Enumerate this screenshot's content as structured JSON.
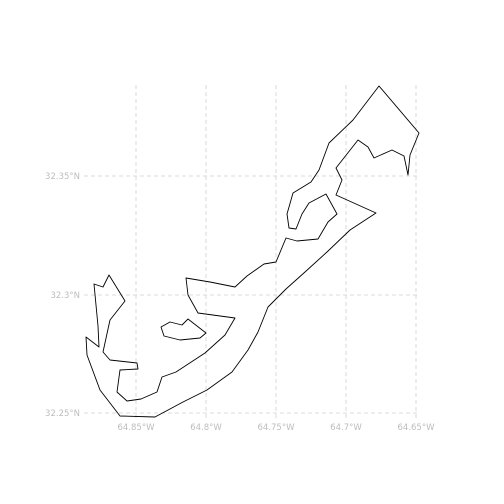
{
  "map": {
    "lat_ticks": [
      {
        "value": 32.35,
        "label": "32.35°N"
      },
      {
        "value": 32.3,
        "label": "32.3°N"
      },
      {
        "value": 32.25,
        "label": "32.25°N"
      }
    ],
    "lon_ticks": [
      {
        "value": -64.85,
        "label": "64.85°W"
      },
      {
        "value": -64.8,
        "label": "64.8°W"
      },
      {
        "value": -64.75,
        "label": "64.75°W"
      },
      {
        "value": -64.7,
        "label": "64.7°W"
      },
      {
        "value": -64.65,
        "label": "64.65°W"
      }
    ],
    "colors": {
      "coastline": "#000000",
      "gridline": "#d0d0d0",
      "tick_label": "#bdbdbd",
      "background": "#ffffff"
    }
  }
}
